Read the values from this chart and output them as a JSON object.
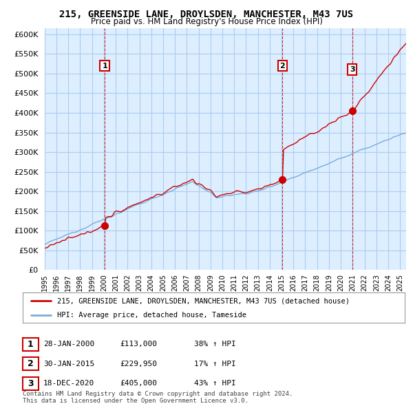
{
  "title": "215, GREENSIDE LANE, DROYLSDEN, MANCHESTER, M43 7US",
  "subtitle": "Price paid vs. HM Land Registry's House Price Index (HPI)",
  "yticks": [
    0,
    50000,
    100000,
    150000,
    200000,
    250000,
    300000,
    350000,
    400000,
    450000,
    500000,
    550000,
    600000
  ],
  "ylim": [
    0,
    615000
  ],
  "xlim_start": 1995.0,
  "xlim_end": 2025.5,
  "sale_color": "#cc0000",
  "hpi_color": "#7aabdb",
  "plot_bg": "#ddeeff",
  "sale_dates": [
    2000.07,
    2015.08,
    2020.96
  ],
  "sale_prices": [
    113000,
    229950,
    405000
  ],
  "sale_labels": [
    "1",
    "2",
    "3"
  ],
  "transaction_info": [
    {
      "label": "1",
      "date": "28-JAN-2000",
      "price": "£113,000",
      "hpi": "38% ↑ HPI"
    },
    {
      "label": "2",
      "date": "30-JAN-2015",
      "price": "£229,950",
      "hpi": "17% ↑ HPI"
    },
    {
      "label": "3",
      "date": "18-DEC-2020",
      "price": "£405,000",
      "hpi": "43% ↑ HPI"
    }
  ],
  "legend_line1": "215, GREENSIDE LANE, DROYLSDEN, MANCHESTER, M43 7US (detached house)",
  "legend_line2": "HPI: Average price, detached house, Tameside",
  "footnote": "Contains HM Land Registry data © Crown copyright and database right 2024.\nThis data is licensed under the Open Government Licence v3.0.",
  "background_color": "#ffffff",
  "grid_color": "#aaccee"
}
